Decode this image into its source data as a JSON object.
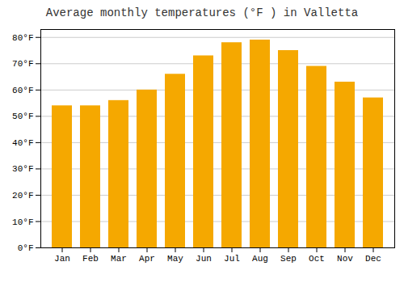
{
  "chart_data": {
    "type": "bar",
    "title": "Average monthly temperatures (°F ) in Valletta",
    "categories": [
      "Jan",
      "Feb",
      "Mar",
      "Apr",
      "May",
      "Jun",
      "Jul",
      "Aug",
      "Sep",
      "Oct",
      "Nov",
      "Dec"
    ],
    "values": [
      54,
      54,
      56,
      60,
      66,
      73,
      78,
      79,
      75,
      69,
      63,
      57
    ],
    "color": "#F5A800",
    "ylim": [
      0,
      83
    ],
    "yticks": [
      {
        "value": 0,
        "label": "0°F"
      },
      {
        "value": 10,
        "label": "10°F"
      },
      {
        "value": 20,
        "label": "20°F"
      },
      {
        "value": 30,
        "label": "30°F"
      },
      {
        "value": 40,
        "label": "40°F"
      },
      {
        "value": 50,
        "label": "50°F"
      },
      {
        "value": 60,
        "label": "60°F"
      },
      {
        "value": 70,
        "label": "70°F"
      },
      {
        "value": 80,
        "label": "80°F"
      }
    ],
    "grid": true
  }
}
